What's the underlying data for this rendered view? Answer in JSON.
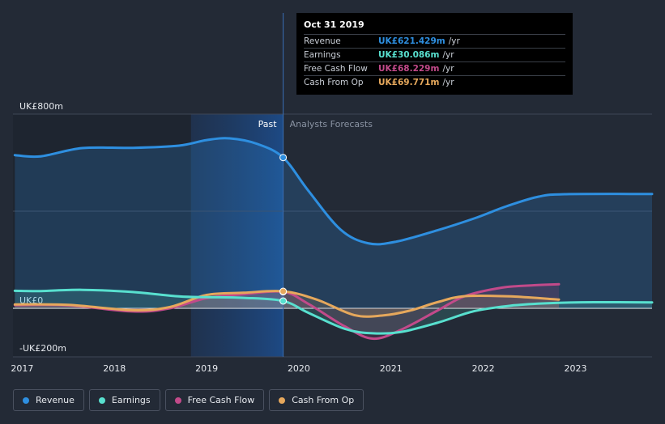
{
  "chart_data": {
    "type": "line",
    "title": "",
    "xlabel": "",
    "ylabel": "",
    "ylim": [
      -200,
      800
    ],
    "xlim": [
      2016.9,
      2023.83
    ],
    "y_ticks": [
      {
        "value": 800,
        "label": "UK£800m"
      },
      {
        "value": 0,
        "label": "UK£0"
      },
      {
        "value": -200,
        "label": "-UK£200m"
      }
    ],
    "x_ticks": [
      {
        "value": 2017,
        "label": "2017"
      },
      {
        "value": 2018,
        "label": "2018"
      },
      {
        "value": 2019,
        "label": "2019"
      },
      {
        "value": 2020,
        "label": "2020"
      },
      {
        "value": 2021,
        "label": "2021"
      },
      {
        "value": 2022,
        "label": "2022"
      },
      {
        "value": 2023,
        "label": "2023"
      }
    ],
    "highlight_start": 2018.83,
    "past_end": 2019.83,
    "past_label": "Past",
    "forecast_label": "Analysts Forecasts",
    "series": [
      {
        "name": "Revenue",
        "color": "#2e8fe0",
        "fill": true,
        "points": [
          [
            2016.92,
            631
          ],
          [
            2017.2,
            626
          ],
          [
            2017.65,
            660
          ],
          [
            2018.2,
            661
          ],
          [
            2018.7,
            670
          ],
          [
            2019.0,
            693
          ],
          [
            2019.25,
            700
          ],
          [
            2019.55,
            677
          ],
          [
            2019.83,
            621
          ],
          [
            2020.1,
            486
          ],
          [
            2020.45,
            325
          ],
          [
            2020.75,
            268
          ],
          [
            2021.05,
            274
          ],
          [
            2021.5,
            321
          ],
          [
            2021.9,
            370
          ],
          [
            2022.25,
            420
          ],
          [
            2022.6,
            460
          ],
          [
            2022.9,
            470
          ],
          [
            2023.83,
            471
          ]
        ]
      },
      {
        "name": "Earnings",
        "color": "#58e0cf",
        "fill": true,
        "points": [
          [
            2016.92,
            72
          ],
          [
            2017.2,
            71
          ],
          [
            2017.65,
            76
          ],
          [
            2018.2,
            67
          ],
          [
            2018.7,
            49
          ],
          [
            2019.0,
            46
          ],
          [
            2019.4,
            43
          ],
          [
            2019.83,
            30
          ],
          [
            2020.1,
            -18
          ],
          [
            2020.5,
            -85
          ],
          [
            2020.8,
            -103
          ],
          [
            2021.1,
            -98
          ],
          [
            2021.5,
            -60
          ],
          [
            2021.9,
            -12
          ],
          [
            2022.3,
            11
          ],
          [
            2022.7,
            21
          ],
          [
            2023.2,
            25
          ],
          [
            2023.83,
            24
          ]
        ]
      },
      {
        "name": "Free Cash Flow",
        "color": "#c24a8a",
        "fill": true,
        "points": [
          [
            2016.92,
            13
          ],
          [
            2017.5,
            12
          ],
          [
            2018.2,
            -13
          ],
          [
            2018.6,
            0
          ],
          [
            2019.0,
            42
          ],
          [
            2019.4,
            58
          ],
          [
            2019.83,
            68
          ],
          [
            2020.1,
            19
          ],
          [
            2020.5,
            -75
          ],
          [
            2020.8,
            -125
          ],
          [
            2021.1,
            -90
          ],
          [
            2021.5,
            -10
          ],
          [
            2021.8,
            50
          ],
          [
            2022.2,
            85
          ],
          [
            2022.55,
            95
          ],
          [
            2022.82,
            99
          ]
        ]
      },
      {
        "name": "Cash From Op",
        "color": "#e6a85c",
        "fill": true,
        "points": [
          [
            2016.92,
            16
          ],
          [
            2017.5,
            14
          ],
          [
            2018.2,
            -8
          ],
          [
            2018.6,
            5
          ],
          [
            2019.0,
            55
          ],
          [
            2019.4,
            64
          ],
          [
            2019.83,
            70
          ],
          [
            2020.2,
            35
          ],
          [
            2020.6,
            -28
          ],
          [
            2020.9,
            -30
          ],
          [
            2021.2,
            -10
          ],
          [
            2021.5,
            25
          ],
          [
            2021.8,
            50
          ],
          [
            2022.3,
            49
          ],
          [
            2022.82,
            36
          ]
        ]
      }
    ],
    "tooltip": {
      "date": "Oct 31 2019",
      "rows": [
        {
          "name": "Revenue",
          "value": "UK£621.429m",
          "unit": "/yr",
          "color": "#2e8fe0"
        },
        {
          "name": "Earnings",
          "value": "UK£30.086m",
          "unit": "/yr",
          "color": "#58e0cf"
        },
        {
          "name": "Free Cash Flow",
          "value": "UK£68.229m",
          "unit": "/yr",
          "color": "#c24a8a"
        },
        {
          "name": "Cash From Op",
          "value": "UK£69.771m",
          "unit": "/yr",
          "color": "#e6a85c"
        }
      ]
    }
  },
  "legend": [
    {
      "label": "Revenue",
      "color": "#2e8fe0"
    },
    {
      "label": "Earnings",
      "color": "#58e0cf"
    },
    {
      "label": "Free Cash Flow",
      "color": "#c24a8a"
    },
    {
      "label": "Cash From Op",
      "color": "#e6a85c"
    }
  ]
}
